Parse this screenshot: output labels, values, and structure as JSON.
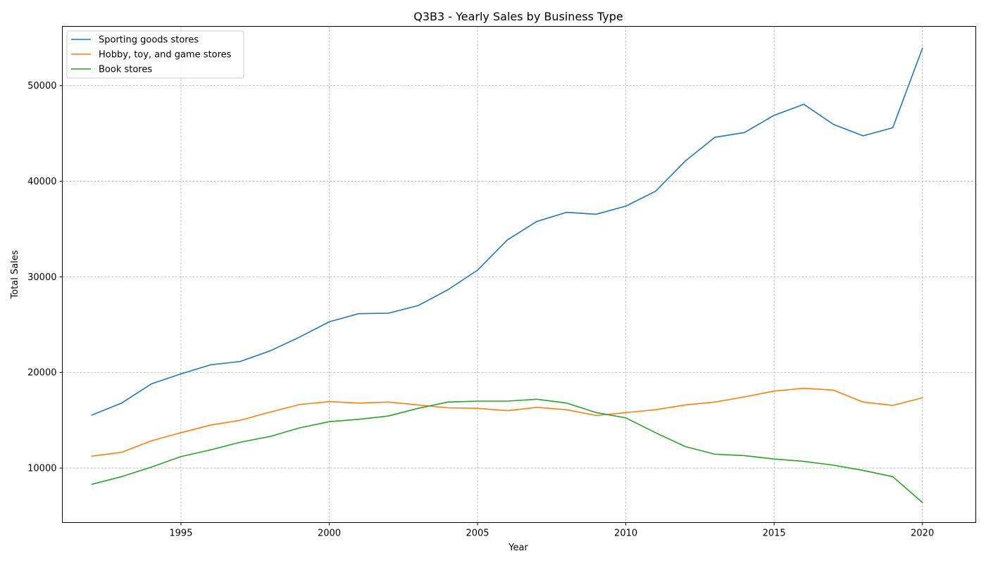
{
  "chart_data": {
    "type": "line",
    "title": "Q3B3 - Yearly Sales by Business Type",
    "xlabel": "Year",
    "ylabel": "Total Sales",
    "x": [
      1992,
      1993,
      1994,
      1995,
      1996,
      1997,
      1998,
      1999,
      2000,
      2001,
      2002,
      2003,
      2004,
      2005,
      2006,
      2007,
      2008,
      2009,
      2010,
      2011,
      2012,
      2013,
      2014,
      2015,
      2016,
      2017,
      2018,
      2019,
      2020
    ],
    "xlim": [
      1991,
      2021.8
    ],
    "ylim": [
      4300,
      56200
    ],
    "xticks": [
      1995,
      2000,
      2005,
      2010,
      2015,
      2020
    ],
    "yticks": [
      10000,
      20000,
      30000,
      40000,
      50000
    ],
    "grid": true,
    "legend_position": "upper-left",
    "series": [
      {
        "name": "Sporting goods stores",
        "color": "#1f77b4",
        "values": [
          15550,
          16800,
          18800,
          19850,
          20800,
          21150,
          22250,
          23700,
          25300,
          26150,
          26200,
          27000,
          28650,
          30700,
          33850,
          35800,
          36750,
          36550,
          37400,
          38950,
          42100,
          44600,
          45100,
          46900,
          48050,
          45950,
          44750,
          45600,
          53900
        ]
      },
      {
        "name": "Hobby, toy, and game stores",
        "color": "#ff7f0e",
        "values": [
          11250,
          11650,
          12850,
          13700,
          14500,
          15000,
          15850,
          16650,
          16950,
          16800,
          16900,
          16600,
          16300,
          16250,
          16000,
          16350,
          16100,
          15500,
          15800,
          16100,
          16600,
          16900,
          17450,
          18050,
          18350,
          18150,
          16900,
          16550,
          17350
        ]
      },
      {
        "name": "Book stores",
        "color": "#2ca02c",
        "values": [
          8300,
          9100,
          10100,
          11200,
          11900,
          12700,
          13300,
          14200,
          14850,
          15100,
          15450,
          16250,
          16900,
          17000,
          17000,
          17200,
          16800,
          15800,
          15250,
          13700,
          12250,
          11450,
          11300,
          10950,
          10700,
          10300,
          9750,
          9100,
          6400
        ]
      }
    ]
  }
}
